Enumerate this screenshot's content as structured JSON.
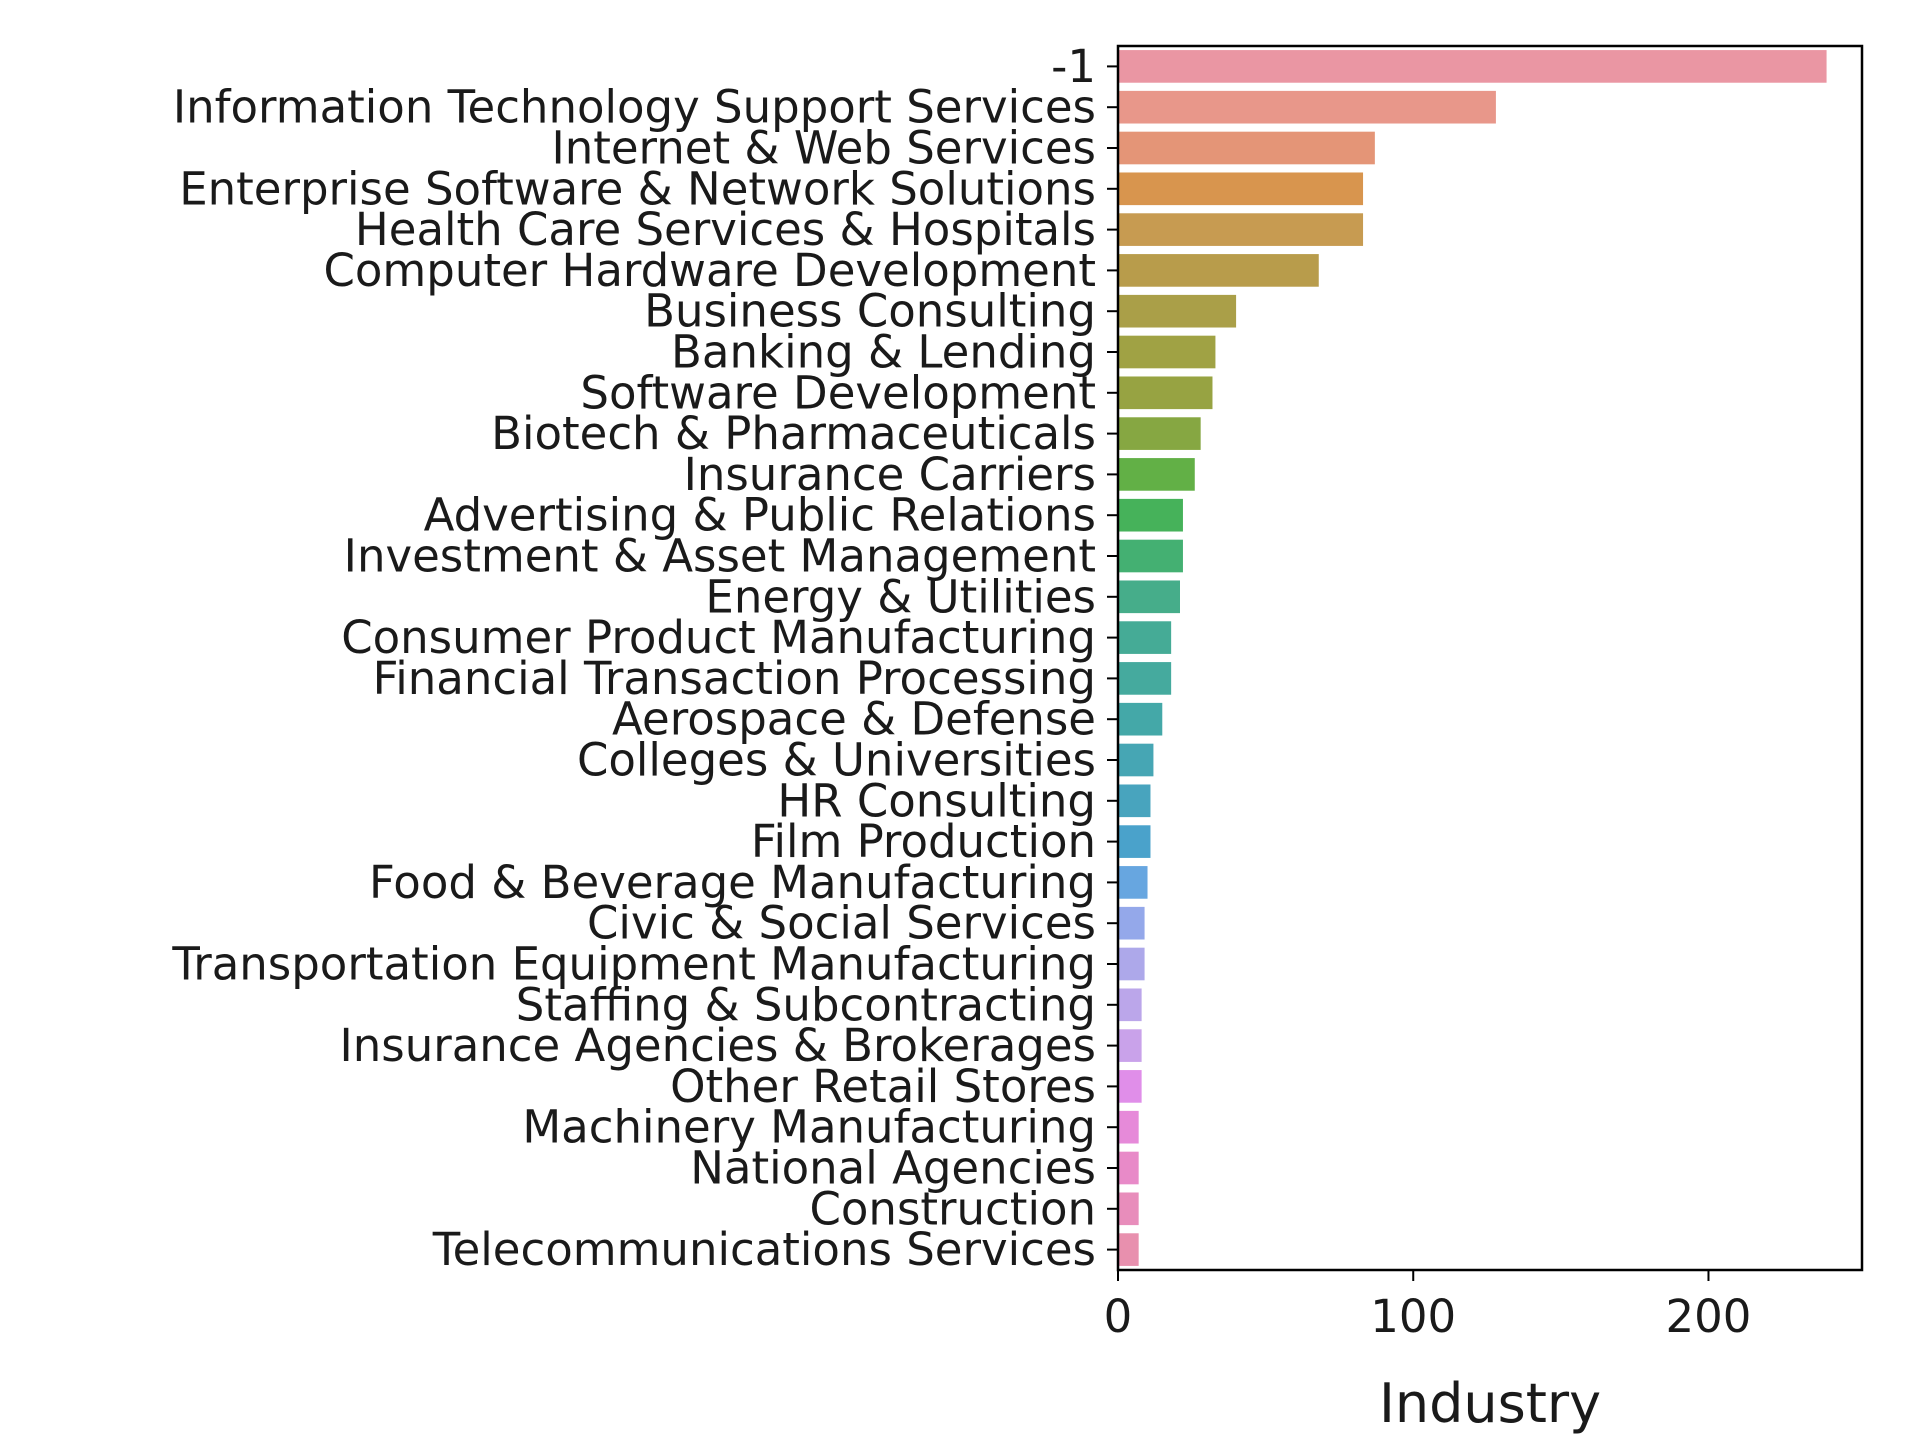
{
  "chart_data": {
    "type": "bar",
    "orientation": "horizontal",
    "categories": [
      "-1",
      "Information Technology Support Services",
      "Internet & Web Services",
      "Enterprise Software & Network Solutions",
      "Health Care Services & Hospitals",
      "Computer Hardware Development",
      "Business Consulting",
      "Banking & Lending",
      "Software Development",
      "Biotech & Pharmaceuticals",
      "Insurance Carriers",
      "Advertising & Public Relations",
      "Investment & Asset Management",
      "Energy & Utilities",
      "Consumer Product Manufacturing",
      "Financial Transaction Processing",
      "Aerospace & Defense",
      "Colleges & Universities",
      "HR Consulting",
      "Film Production",
      "Food & Beverage Manufacturing",
      "Civic & Social Services",
      "Transportation Equipment Manufacturing",
      "Staffing & Subcontracting",
      "Insurance Agencies & Brokerages",
      "Other Retail Stores",
      "Machinery Manufacturing",
      "National Agencies",
      "Construction",
      "Telecommunications Services"
    ],
    "values": [
      240,
      128,
      87,
      83,
      83,
      68,
      40,
      33,
      32,
      28,
      26,
      22,
      22,
      21,
      18,
      18,
      15,
      12,
      11,
      11,
      10,
      9,
      9,
      8,
      8,
      8,
      7,
      7,
      7,
      7
    ],
    "colors": [
      "#ea96a3",
      "#e8978a",
      "#e49577",
      "#d8954e",
      "#c79b51",
      "#b89c4b",
      "#aa9f48",
      "#a0a244",
      "#97a342",
      "#86a742",
      "#62b046",
      "#46b25a",
      "#44b072",
      "#46ad8a",
      "#45ab96",
      "#45aa9e",
      "#44a8a8",
      "#46a6b4",
      "#48a4be",
      "#4aa2cb",
      "#67a6e0",
      "#94a8ea",
      "#ada8ea",
      "#bba6ea",
      "#c9a2ea",
      "#e08ee9",
      "#e68ad9",
      "#e88ac8",
      "#e88dbb",
      "#e890ae"
    ],
    "xlabel": "Industry",
    "ylabel": "",
    "xlim": [
      0,
      252
    ],
    "xticks": [
      0,
      100,
      200
    ],
    "grid": false,
    "legend": "none"
  }
}
